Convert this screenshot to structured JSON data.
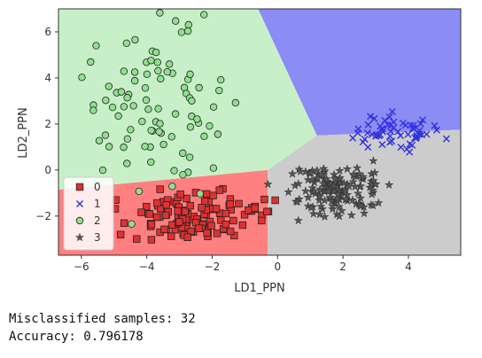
{
  "chart_data": {
    "type": "scatter",
    "title": "",
    "xlabel": "LD1_PPN",
    "ylabel": "LD2_PPN",
    "xlim": [
      -6.7,
      5.6
    ],
    "ylim": [
      -3.7,
      7.0
    ],
    "xticks": [
      "−6",
      "−4",
      "−2",
      "0",
      "2",
      "4"
    ],
    "xtick_values": [
      -6,
      -4,
      -2,
      0,
      2,
      4
    ],
    "yticks": [
      "−2",
      "0",
      "2",
      "4",
      "6"
    ],
    "ytick_values": [
      -2,
      0,
      2,
      4,
      6
    ],
    "grid": false,
    "legend_position": "lower-left",
    "regions": [
      {
        "label": "0",
        "color": "#ff8080",
        "polygon": [
          [
            -6.7,
            -0.85
          ],
          [
            -0.3,
            0.0
          ],
          [
            -0.3,
            -3.7
          ],
          [
            -6.7,
            -3.7
          ]
        ]
      },
      {
        "label": "1",
        "color": "#8c8cf5",
        "polygon": [
          [
            -0.6,
            7.0
          ],
          [
            5.6,
            7.0
          ],
          [
            5.6,
            1.75
          ],
          [
            1.2,
            1.5
          ]
        ]
      },
      {
        "label": "2",
        "color": "#c8f0c8",
        "polygon": [
          [
            -6.7,
            7.0
          ],
          [
            -0.6,
            7.0
          ],
          [
            1.2,
            1.5
          ],
          [
            -0.3,
            0.0
          ],
          [
            -6.7,
            -0.85
          ]
        ]
      },
      {
        "label": "3",
        "color": "#cccccc",
        "polygon": [
          [
            -0.3,
            0.0
          ],
          [
            1.2,
            1.5
          ],
          [
            5.6,
            1.75
          ],
          [
            5.6,
            -3.7
          ],
          [
            -0.3,
            -3.7
          ]
        ]
      }
    ],
    "series": [
      {
        "name": "0",
        "marker": "square",
        "color": "#e03030",
        "center": [
          -2.6,
          -1.9
        ],
        "spread": [
          1.15,
          0.55
        ],
        "count": 120
      },
      {
        "name": "1",
        "marker": "x",
        "color": "#3030e0",
        "center": [
          3.6,
          1.6
        ],
        "spread": [
          0.55,
          0.35
        ],
        "count": 60
      },
      {
        "name": "2",
        "marker": "circle",
        "color": "#90e090",
        "center": [
          -3.6,
          2.5
        ],
        "spread": [
          1.05,
          2.0
        ],
        "count": 90
      },
      {
        "name": "3",
        "marker": "star",
        "color": "#555555",
        "center": [
          1.7,
          -0.9
        ],
        "spread": [
          0.7,
          0.5
        ],
        "count": 150
      }
    ]
  },
  "output": {
    "line1": "Misclassified samples: 32",
    "line2": "Accuracy: 0.796178"
  }
}
